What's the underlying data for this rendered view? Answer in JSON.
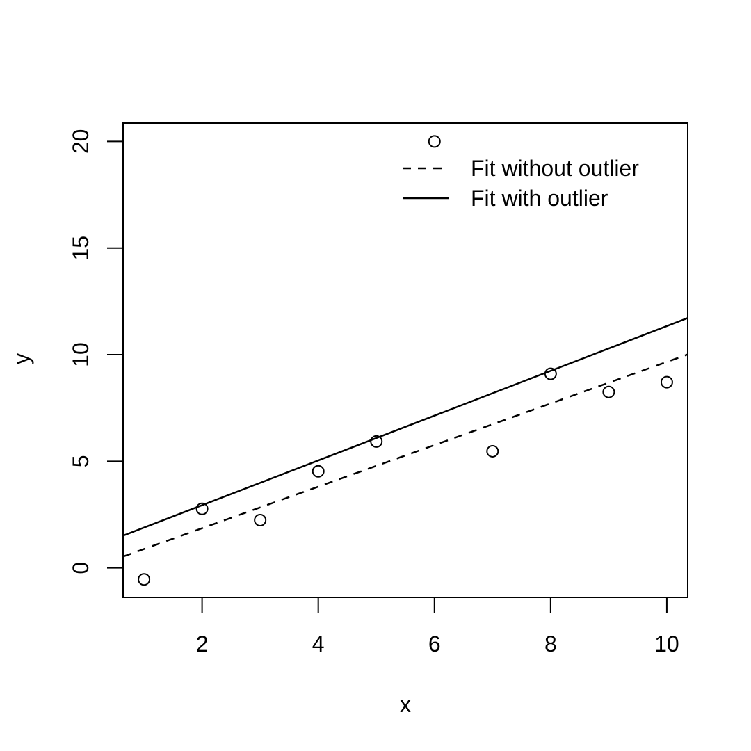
{
  "chart_data": {
    "type": "scatter",
    "title": "",
    "xlabel": "x",
    "ylabel": "y",
    "xlim": [
      0.64,
      10.36
    ],
    "ylim": [
      -1.38,
      20.86
    ],
    "x_ticks": [
      2,
      4,
      6,
      8,
      10
    ],
    "y_ticks": [
      0,
      5,
      10,
      15,
      20
    ],
    "grid": false,
    "points": {
      "x": [
        1,
        2,
        3,
        4,
        5,
        6,
        7,
        8,
        9,
        10
      ],
      "y": [
        -0.54,
        2.77,
        2.24,
        4.53,
        5.93,
        20.0,
        5.47,
        9.1,
        8.25,
        8.71
      ]
    },
    "series": [
      {
        "name": "Fit without outlier",
        "type": "line",
        "style": "dashed",
        "intercept": -0.09,
        "slope": 0.975
      },
      {
        "name": "Fit with outlier",
        "type": "line",
        "style": "solid",
        "intercept": 0.84,
        "slope": 1.05
      }
    ],
    "legend": {
      "placement": "top-right",
      "entries": [
        {
          "label": "Fit without outlier",
          "style": "dashed"
        },
        {
          "label": "Fit with outlier",
          "style": "solid"
        }
      ]
    }
  }
}
